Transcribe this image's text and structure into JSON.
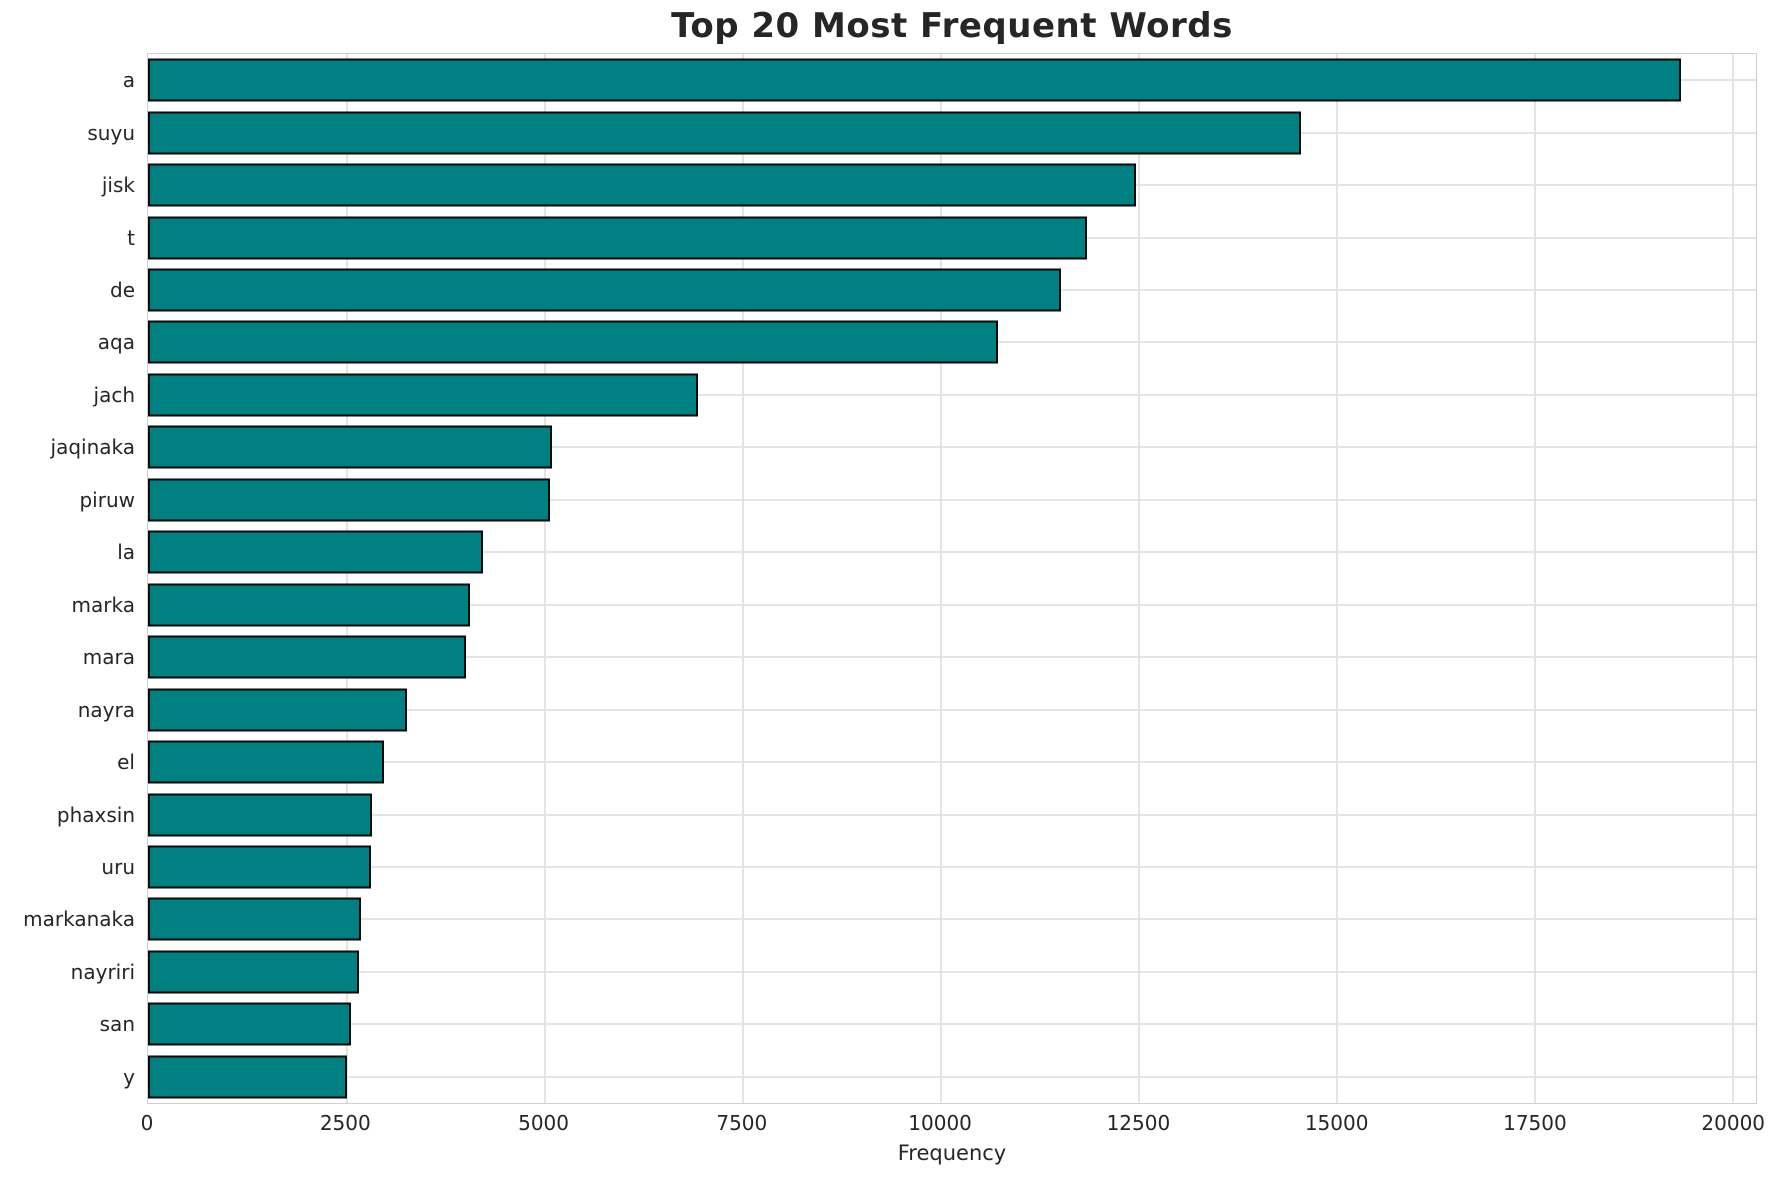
{
  "chart_data": {
    "type": "bar",
    "orientation": "horizontal",
    "title": "Top 20 Most Frequent Words",
    "xlabel": "Frequency",
    "ylabel": "",
    "categories": [
      "a",
      "suyu",
      "jisk",
      "t",
      "de",
      "aqa",
      "jach",
      "jaqinaka",
      "piruw",
      "la",
      "marka",
      "mara",
      "nayra",
      "el",
      "phaxsin",
      "uru",
      "markanaka",
      "nayriri",
      "san",
      "y"
    ],
    "values": [
      19350,
      14560,
      12470,
      11850,
      11520,
      10730,
      6940,
      5100,
      5070,
      4230,
      4060,
      4010,
      3270,
      2980,
      2830,
      2810,
      2690,
      2660,
      2560,
      2510
    ],
    "xlim": [
      0,
      20300
    ],
    "xticks": {
      "values": [
        0,
        2500,
        5000,
        7500,
        10000,
        12500,
        15000,
        17500,
        20000
      ],
      "labels": [
        "0",
        "2500",
        "5000",
        "7500",
        "10000",
        "12500",
        "15000",
        "17500",
        "20000"
      ]
    },
    "grid": true,
    "legend_position": "none",
    "bar_height_fraction": 0.8,
    "colors": {
      "bar_fill": "#008080",
      "bar_edge": "#0a0a0a",
      "gridline": "#e4e4e4",
      "spine": "#cfcfcf",
      "text": "#262626",
      "background": "#ffffff"
    }
  }
}
